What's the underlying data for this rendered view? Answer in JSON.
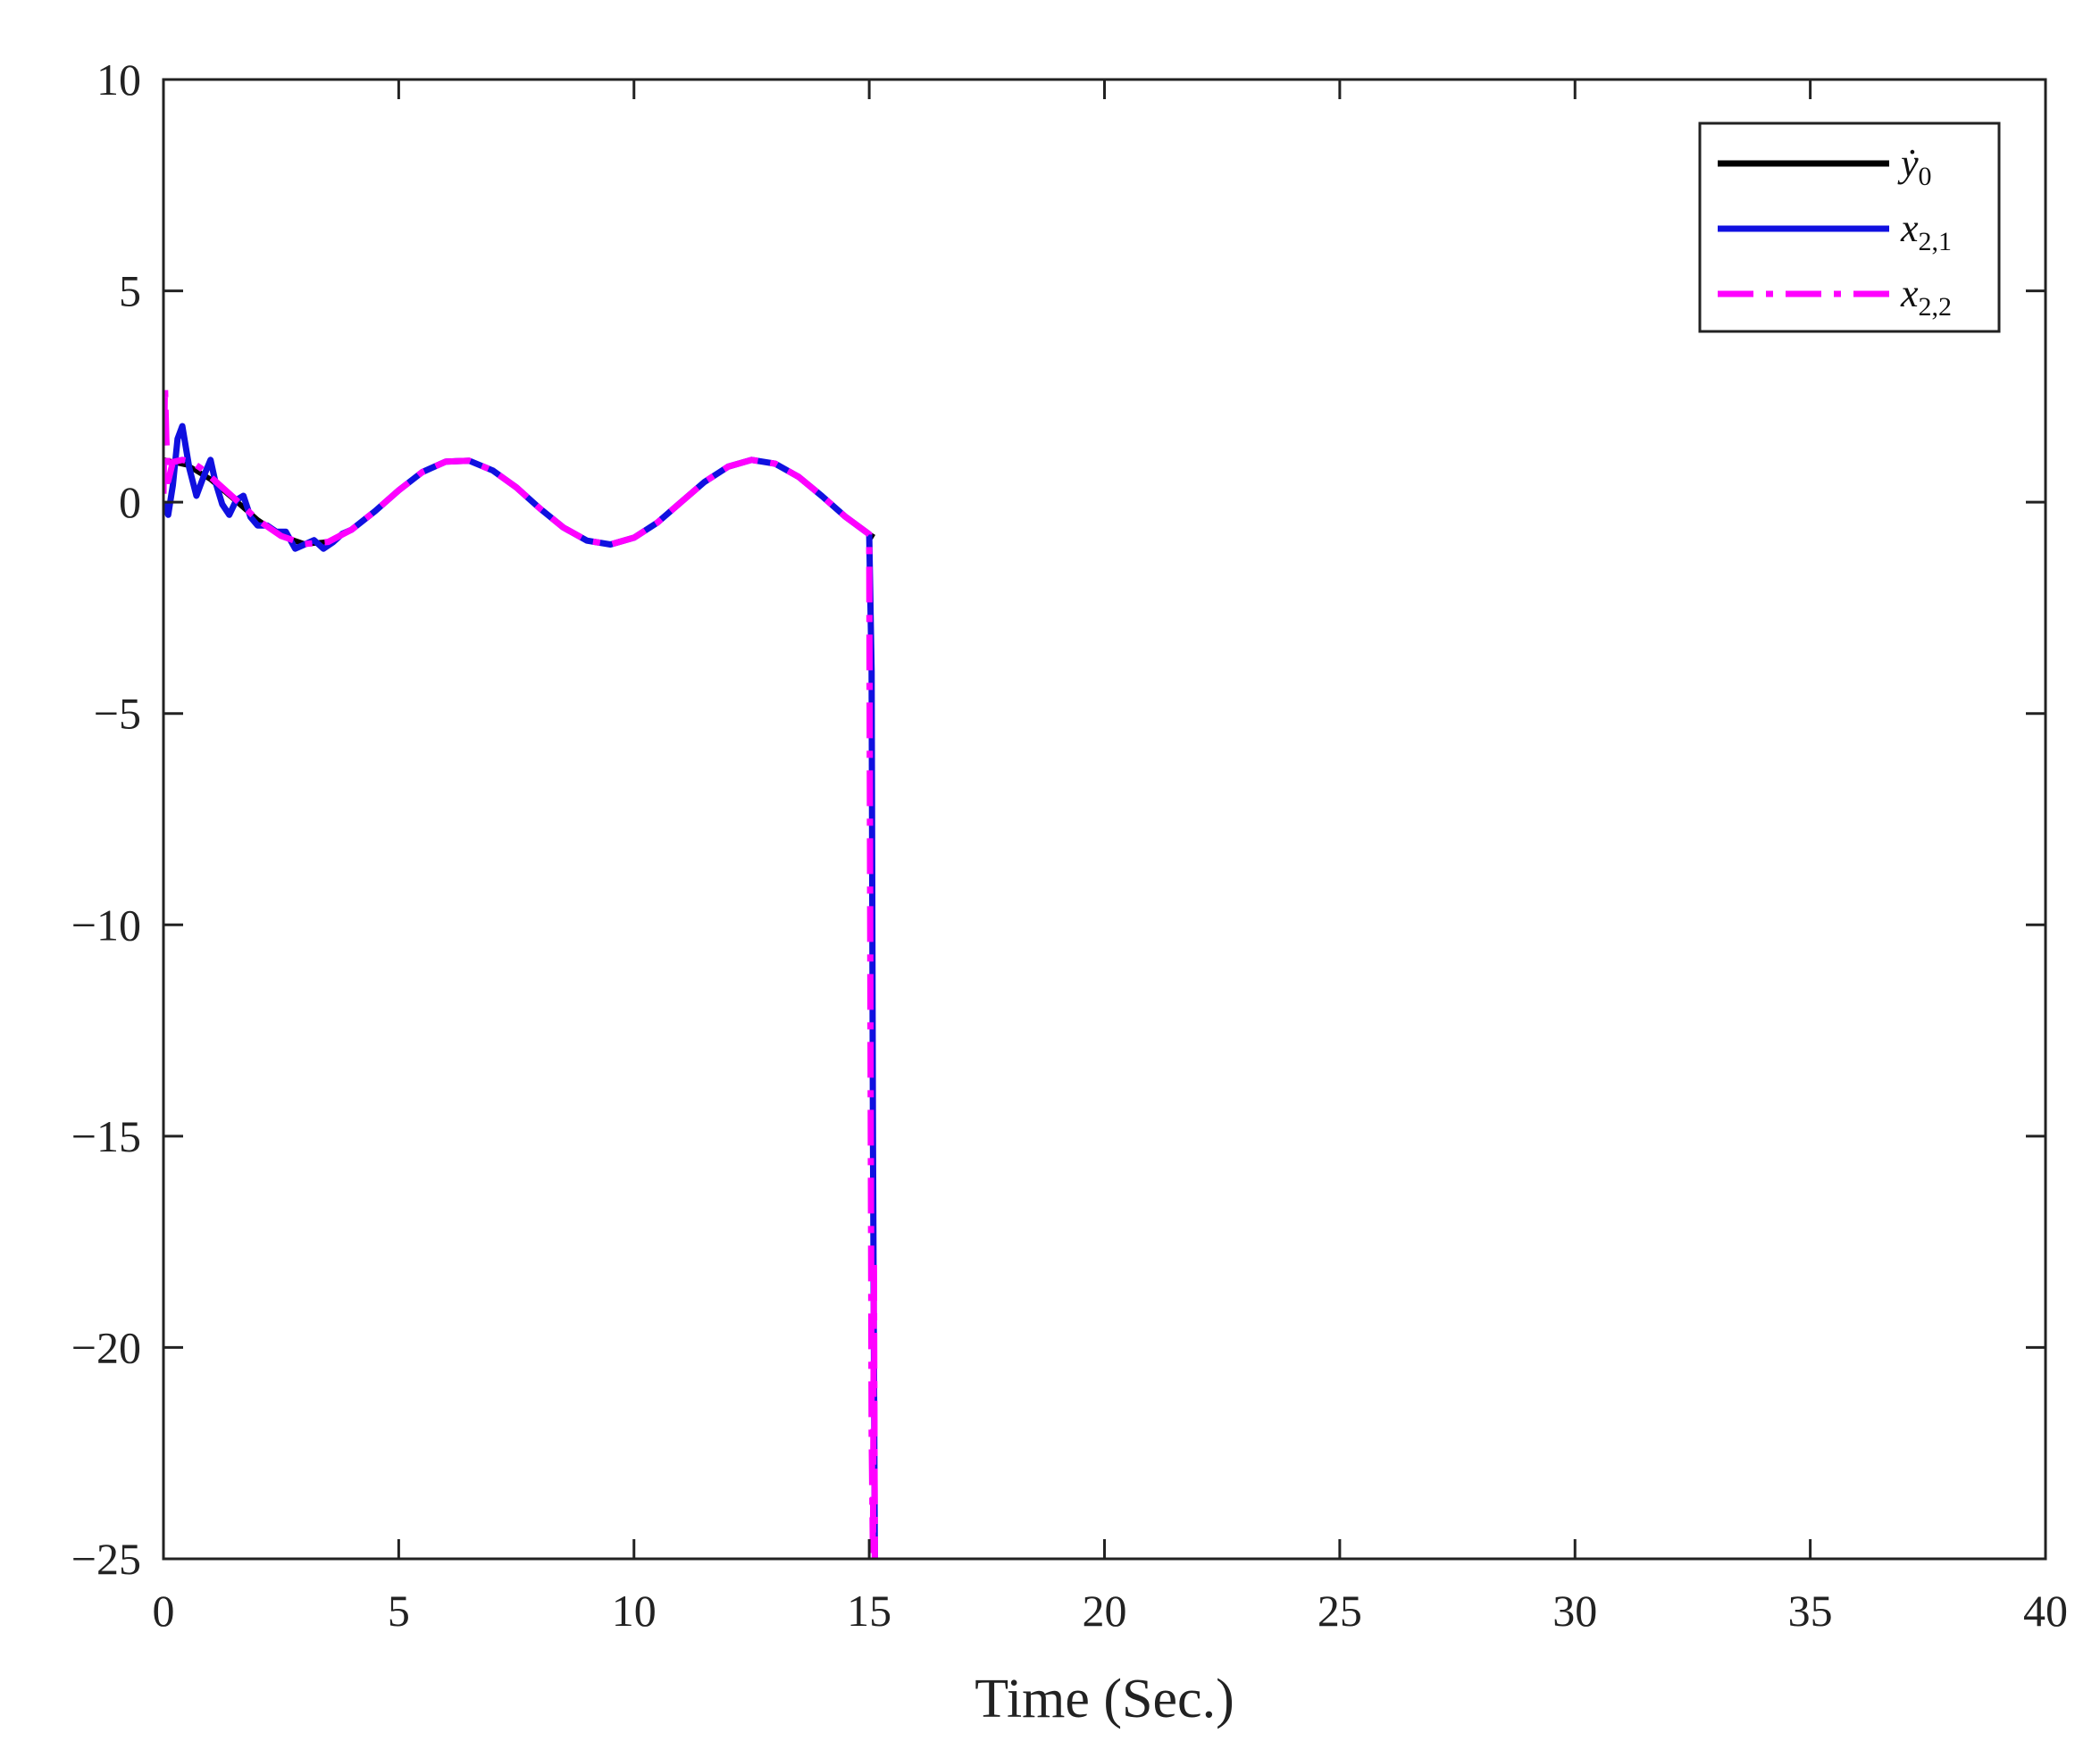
{
  "chart_data": {
    "type": "line",
    "title": "",
    "xlabel": "Time (Sec.)",
    "ylabel": "",
    "xlim": [
      0,
      40
    ],
    "ylim": [
      -25,
      10
    ],
    "xticks": [
      0,
      5,
      10,
      15,
      20,
      25,
      30,
      35,
      40
    ],
    "yticks": [
      -25,
      -20,
      -15,
      -10,
      -5,
      0,
      5,
      10
    ],
    "xtick_labels": [
      "0",
      "5",
      "10",
      "15",
      "20",
      "25",
      "30",
      "35",
      "40"
    ],
    "ytick_labels": [
      "−25",
      "−20",
      "−15",
      "−10",
      "−5",
      "0",
      "5",
      "10"
    ],
    "grid": false,
    "legend_position": "top-right",
    "series": [
      {
        "name": "ẏ",
        "name_sub": "0",
        "color": "#000000",
        "style": "solid",
        "x": [
          0,
          0.5,
          1,
          1.5,
          2,
          2.5,
          3,
          3.5,
          4,
          4.5,
          5,
          5.5,
          6,
          6.5,
          7,
          7.5,
          8,
          8.5,
          9,
          9.5,
          10,
          10.5,
          11,
          11.5,
          12,
          12.5,
          13,
          13.5,
          14,
          14.5,
          15,
          15.1
        ],
        "y": [
          1.0,
          0.88,
          0.54,
          0.07,
          -0.42,
          -0.8,
          -0.99,
          -0.94,
          -0.65,
          -0.21,
          0.28,
          0.71,
          0.96,
          0.98,
          0.75,
          0.35,
          -0.15,
          -0.6,
          -0.91,
          -1.0,
          -0.84,
          -0.48,
          0.0,
          0.48,
          0.84,
          1.0,
          0.91,
          0.6,
          0.14,
          -0.35,
          -0.76,
          -0.83
        ]
      },
      {
        "name": "x",
        "name_sub": "2,1",
        "color": "#1010e0",
        "style": "solid",
        "x": [
          0,
          0.1,
          0.2,
          0.3,
          0.4,
          0.55,
          0.7,
          0.85,
          1.0,
          1.1,
          1.25,
          1.4,
          1.55,
          1.7,
          1.85,
          2.0,
          2.2,
          2.4,
          2.6,
          2.8,
          3.0,
          3.2,
          3.4,
          3.6,
          3.8,
          4.0,
          4.5,
          5,
          5.5,
          6,
          6.5,
          7,
          7.5,
          8,
          8.5,
          9,
          9.5,
          10,
          10.5,
          11,
          11.5,
          12,
          12.5,
          13,
          13.5,
          14,
          14.5,
          15.0,
          15.05,
          15.08,
          15.12,
          15.12
        ],
        "y": [
          0,
          -0.3,
          0.4,
          1.5,
          1.8,
          0.8,
          0.15,
          0.6,
          1.0,
          0.5,
          -0.05,
          -0.3,
          0.05,
          0.15,
          -0.35,
          -0.55,
          -0.55,
          -0.7,
          -0.7,
          -1.1,
          -1.0,
          -0.9,
          -1.1,
          -0.95,
          -0.75,
          -0.65,
          -0.21,
          0.28,
          0.71,
          0.96,
          0.98,
          0.75,
          0.35,
          -0.15,
          -0.6,
          -0.91,
          -1.0,
          -0.84,
          -0.48,
          0.0,
          0.48,
          0.84,
          1.0,
          0.91,
          0.6,
          0.14,
          -0.35,
          -0.76,
          -4.0,
          -15.0,
          -25.0,
          -25.0
        ]
      },
      {
        "name": "x",
        "name_sub": "2,2",
        "color": "#ff00ff",
        "style": "dashdot",
        "x": [
          0,
          0.03,
          0.06,
          0.1,
          0.2,
          0.4,
          0.6,
          0.8,
          1.0,
          1.5,
          2,
          2.5,
          3,
          3.5,
          4,
          4.5,
          5,
          5.5,
          6,
          6.5,
          7,
          7.5,
          8,
          8.5,
          9,
          9.5,
          10,
          10.5,
          11,
          11.5,
          12,
          12.5,
          13,
          13.5,
          14,
          14.5,
          15.0,
          15.02,
          15.05,
          15.08,
          15.1,
          15.12
        ],
        "y": [
          0.2,
          2.8,
          1.5,
          0.5,
          0.95,
          1.0,
          0.95,
          0.8,
          0.6,
          0.1,
          -0.42,
          -0.8,
          -0.99,
          -0.94,
          -0.65,
          -0.21,
          0.28,
          0.71,
          0.96,
          0.98,
          0.75,
          0.35,
          -0.15,
          -0.6,
          -0.91,
          -1.0,
          -0.84,
          -0.48,
          0.0,
          0.48,
          0.84,
          1.0,
          0.91,
          0.6,
          0.14,
          -0.35,
          -0.76,
          -10.0,
          -22.0,
          -25.0,
          -18.0,
          -25.0
        ]
      }
    ]
  }
}
